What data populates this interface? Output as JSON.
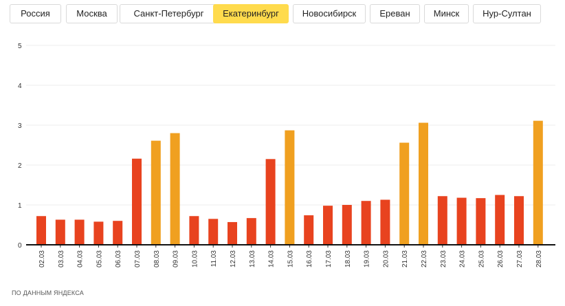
{
  "tabs": [
    {
      "label": "Россия",
      "active": false
    },
    {
      "label": "Москва",
      "active": false
    },
    {
      "label": "Санкт-Петербург",
      "active": false
    },
    {
      "label": "Екатеринбург",
      "active": true
    },
    {
      "label": "Новосибирск",
      "active": false
    },
    {
      "label": "Ереван",
      "active": false
    },
    {
      "label": "Минск",
      "active": false
    },
    {
      "label": "Нур-Султан",
      "active": false
    }
  ],
  "footer": {
    "source": "ПО ДАННЫМ ЯНДЕКСА"
  },
  "colors": {
    "weekday": "#e8431f",
    "weekend": "#f0a020",
    "active_tab": "#ffdb4d"
  },
  "chart_data": {
    "type": "bar",
    "title": "",
    "xlabel": "",
    "ylabel": "",
    "ylim": [
      0,
      5
    ],
    "yticks": [
      "0",
      "1",
      "2",
      "3",
      "4",
      "5"
    ],
    "grid": true,
    "categories": [
      "02.03",
      "03.03",
      "04.03",
      "05.03",
      "06.03",
      "07.03",
      "08.03",
      "09.03",
      "10.03",
      "11.03",
      "12.03",
      "13.03",
      "14.03",
      "15.03",
      "16.03",
      "17.03",
      "18.03",
      "19.03",
      "20.03",
      "21.03",
      "22.03",
      "23.03",
      "24.03",
      "25.03",
      "26.03",
      "27.03",
      "28.03"
    ],
    "values": [
      0.72,
      0.63,
      0.63,
      0.58,
      0.6,
      2.16,
      2.61,
      2.8,
      0.72,
      0.65,
      0.57,
      0.67,
      2.15,
      2.87,
      0.74,
      0.98,
      1.0,
      1.1,
      1.13,
      2.56,
      3.06,
      1.22,
      1.18,
      1.17,
      1.25,
      1.22,
      3.11
    ],
    "bar_type": [
      "weekday",
      "weekday",
      "weekday",
      "weekday",
      "weekday",
      "weekday",
      "weekend",
      "weekend",
      "weekday",
      "weekday",
      "weekday",
      "weekday",
      "weekday",
      "weekend",
      "weekday",
      "weekday",
      "weekday",
      "weekday",
      "weekday",
      "weekend",
      "weekend",
      "weekday",
      "weekday",
      "weekday",
      "weekday",
      "weekday",
      "weekend"
    ]
  }
}
